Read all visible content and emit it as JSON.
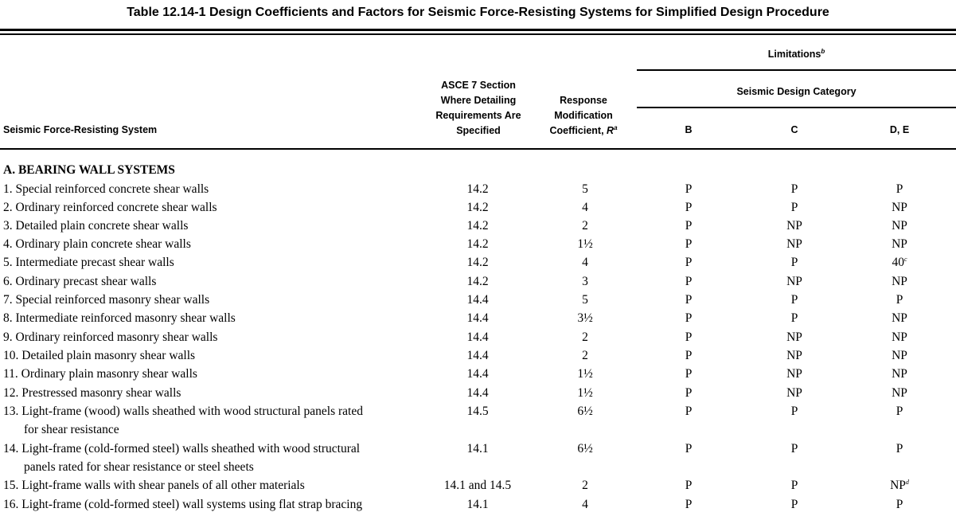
{
  "title": "Table 12.14-1 Design Coefficients and Factors for Seismic Force-Resisting Systems for Simplified Design Procedure",
  "headers": {
    "system": "Seismic Force-Resisting System",
    "section_l1": "ASCE 7 Section",
    "section_l2": "Where Detailing",
    "section_l3": "Requirements Are",
    "section_l4": "Specified",
    "r_l1": "Response",
    "r_l2": "Modification",
    "r_l3": "Coefficient, ",
    "r_sym": "R",
    "r_sup": "a",
    "limitations": "Limitations",
    "limitations_sup": "b",
    "sdc": "Seismic Design Category",
    "cat_b": "B",
    "cat_c": "C",
    "cat_de": "D, E"
  },
  "section_a": "A. BEARING WALL SYSTEMS",
  "rows": [
    {
      "system": "1. Special reinforced concrete shear walls",
      "section": "14.2",
      "r": "5",
      "b": "P",
      "c": "P",
      "de": "P"
    },
    {
      "system": "2. Ordinary reinforced concrete shear walls",
      "section": "14.2",
      "r": "4",
      "b": "P",
      "c": "P",
      "de": "NP"
    },
    {
      "system": "3. Detailed plain concrete shear walls",
      "section": "14.2",
      "r": "2",
      "b": "P",
      "c": "NP",
      "de": "NP"
    },
    {
      "system": "4. Ordinary plain concrete shear walls",
      "section": "14.2",
      "r": "1½",
      "b": "P",
      "c": "NP",
      "de": "NP"
    },
    {
      "system": "5. Intermediate precast shear walls",
      "section": "14.2",
      "r": "4",
      "b": "P",
      "c": "P",
      "de": "40",
      "de_sup": "c"
    },
    {
      "system": "6. Ordinary precast shear walls",
      "section": "14.2",
      "r": "3",
      "b": "P",
      "c": "NP",
      "de": "NP"
    },
    {
      "system": "7. Special reinforced masonry shear walls",
      "section": "14.4",
      "r": "5",
      "b": "P",
      "c": "P",
      "de": "P"
    },
    {
      "system": "8. Intermediate reinforced masonry shear walls",
      "section": "14.4",
      "r": "3½",
      "b": "P",
      "c": "P",
      "de": "NP"
    },
    {
      "system": "9. Ordinary reinforced masonry shear walls",
      "section": "14.4",
      "r": "2",
      "b": "P",
      "c": "NP",
      "de": "NP"
    },
    {
      "system": "10. Detailed plain masonry shear walls",
      "section": "14.4",
      "r": "2",
      "b": "P",
      "c": "NP",
      "de": "NP"
    },
    {
      "system": "11. Ordinary plain masonry shear walls",
      "section": "14.4",
      "r": "1½",
      "b": "P",
      "c": "NP",
      "de": "NP"
    },
    {
      "system": "12. Prestressed masonry shear walls",
      "section": "14.4",
      "r": "1½",
      "b": "P",
      "c": "NP",
      "de": "NP"
    },
    {
      "system": "13. Light-frame (wood) walls sheathed with wood structural panels rated",
      "continuation": "for shear resistance",
      "section": "14.5",
      "r": "6½",
      "b": "P",
      "c": "P",
      "de": "P"
    },
    {
      "system": "14. Light-frame (cold-formed steel) walls sheathed with wood structural",
      "continuation": "panels rated for shear resistance or steel sheets",
      "section": "14.1",
      "r": "6½",
      "b": "P",
      "c": "P",
      "de": "P"
    },
    {
      "system": "15. Light-frame walls with shear panels of all other materials",
      "section": "14.1 and 14.5",
      "r": "2",
      "b": "P",
      "c": "P",
      "de": "NP",
      "de_sup": "d"
    },
    {
      "system": "16. Light-frame (cold-formed steel) wall systems using flat strap bracing",
      "section": "14.1",
      "r": "4",
      "b": "P",
      "c": "P",
      "de": "P"
    }
  ]
}
